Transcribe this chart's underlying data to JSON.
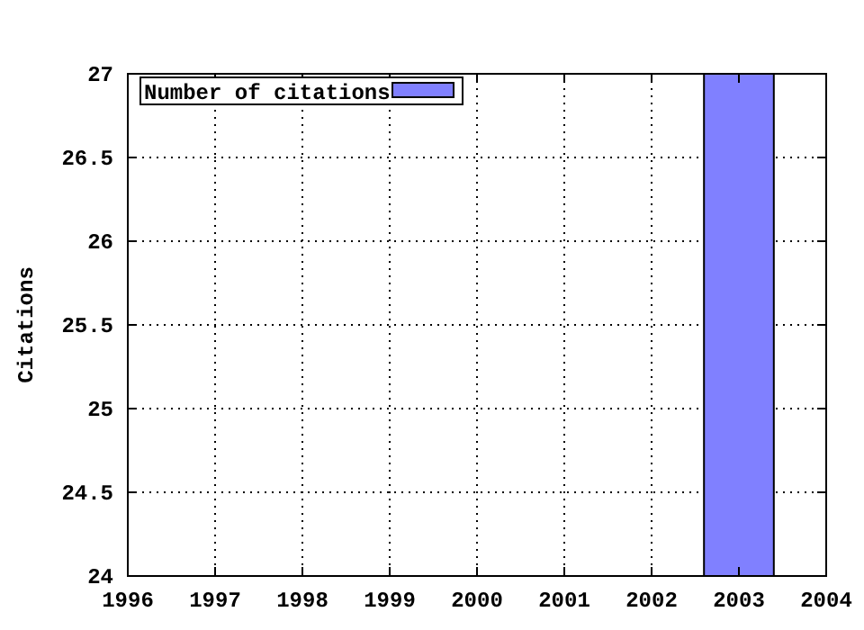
{
  "chart_data": {
    "type": "bar",
    "ylabel": "Citations",
    "x": [
      2003
    ],
    "series": [
      {
        "name": "Number of citations",
        "color": "#8080ff",
        "values": [
          27
        ]
      }
    ],
    "xlim": [
      1996,
      2004
    ],
    "xticks": [
      1996,
      1997,
      1998,
      1999,
      2000,
      2001,
      2002,
      2003,
      2004
    ],
    "ylim": [
      24,
      27
    ],
    "yticks": [
      24,
      24.5,
      25,
      25.5,
      26,
      26.5,
      27
    ],
    "grid": true,
    "legend": "top left"
  }
}
